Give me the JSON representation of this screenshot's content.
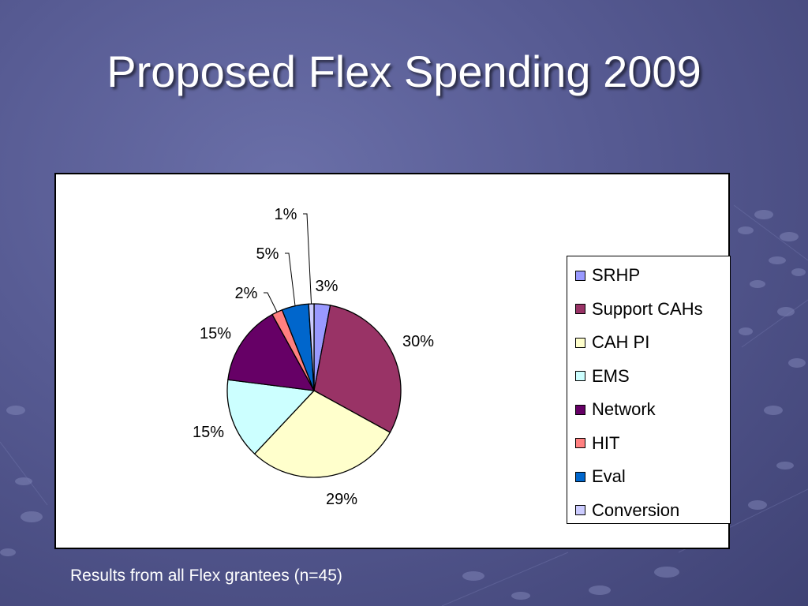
{
  "slide": {
    "title": "Proposed Flex Spending 2009",
    "caption": "Results from all Flex grantees (n=45)"
  },
  "colors": {
    "background": "#565a92",
    "title": "#ffffff"
  },
  "chart_data": {
    "type": "pie",
    "title": "",
    "legend_position": "right",
    "slices": [
      {
        "name": "SRHP",
        "value": 3,
        "label": "3%",
        "color": "#9999ff"
      },
      {
        "name": "Support CAHs",
        "value": 30,
        "label": "30%",
        "color": "#993366"
      },
      {
        "name": "CAH PI",
        "value": 29,
        "label": "29%",
        "color": "#ffffcc"
      },
      {
        "name": "EMS",
        "value": 15,
        "label": "15%",
        "color": "#ccffff"
      },
      {
        "name": "Network",
        "value": 15,
        "label": "15%",
        "color": "#660066"
      },
      {
        "name": "HIT",
        "value": 2,
        "label": "2%",
        "color": "#ff8080"
      },
      {
        "name": "Eval",
        "value": 5,
        "label": "5%",
        "color": "#0066cc"
      },
      {
        "name": "Conversion",
        "value": 1,
        "label": "1%",
        "color": "#ccccff"
      }
    ]
  }
}
